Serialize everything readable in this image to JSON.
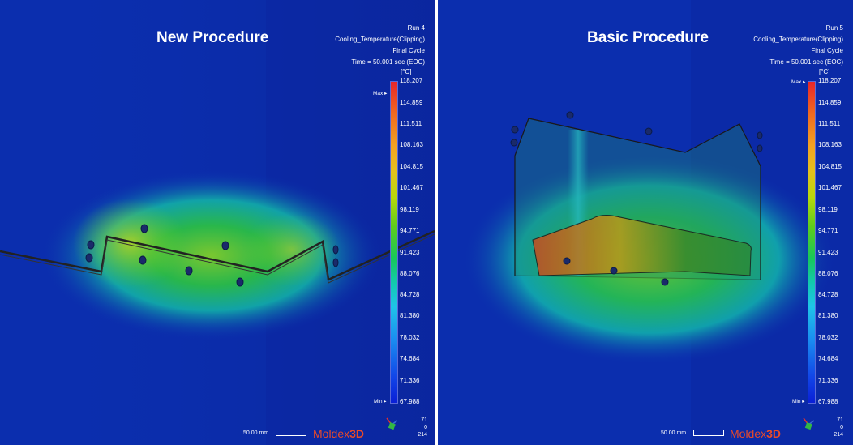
{
  "panels": [
    {
      "title": "New Procedure",
      "info": [
        "Run 4",
        "Cooling_Temperature(Clipping)",
        "Final Cycle",
        "Time = 50.001 sec (EOC)"
      ],
      "unit": "[°C]",
      "max_label": "Max",
      "min_label": "Min",
      "ticks": [
        "118.207",
        "114.859",
        "111.511",
        "108.163",
        "104.815",
        "101.467",
        "98.119",
        "94.771",
        "91.423",
        "88.076",
        "84.728",
        "81.380",
        "78.032",
        "74.684",
        "71.336",
        "67.988"
      ],
      "scale_text": "50.00 mm",
      "brand_text": "Moldex",
      "brand_suffix": "3D",
      "axes_values": [
        "71",
        "0",
        "214"
      ]
    },
    {
      "title": "Basic Procedure",
      "info": [
        "Run 5",
        "Cooling_Temperature(Clipping)",
        "Final Cycle",
        "Time = 50.001 sec (EOC)"
      ],
      "unit": "[°C]",
      "max_label": "Max",
      "min_label": "Min",
      "ticks": [
        "118.207",
        "114.859",
        "111.511",
        "108.163",
        "104.815",
        "101.467",
        "98.119",
        "94.771",
        "91.423",
        "88.076",
        "84.728",
        "81.380",
        "78.032",
        "74.684",
        "71.336",
        "67.988"
      ],
      "scale_text": "50.00 mm",
      "brand_text": "Moldex",
      "brand_suffix": "3D",
      "axes_values": [
        "71",
        "0",
        "214"
      ]
    }
  ]
}
